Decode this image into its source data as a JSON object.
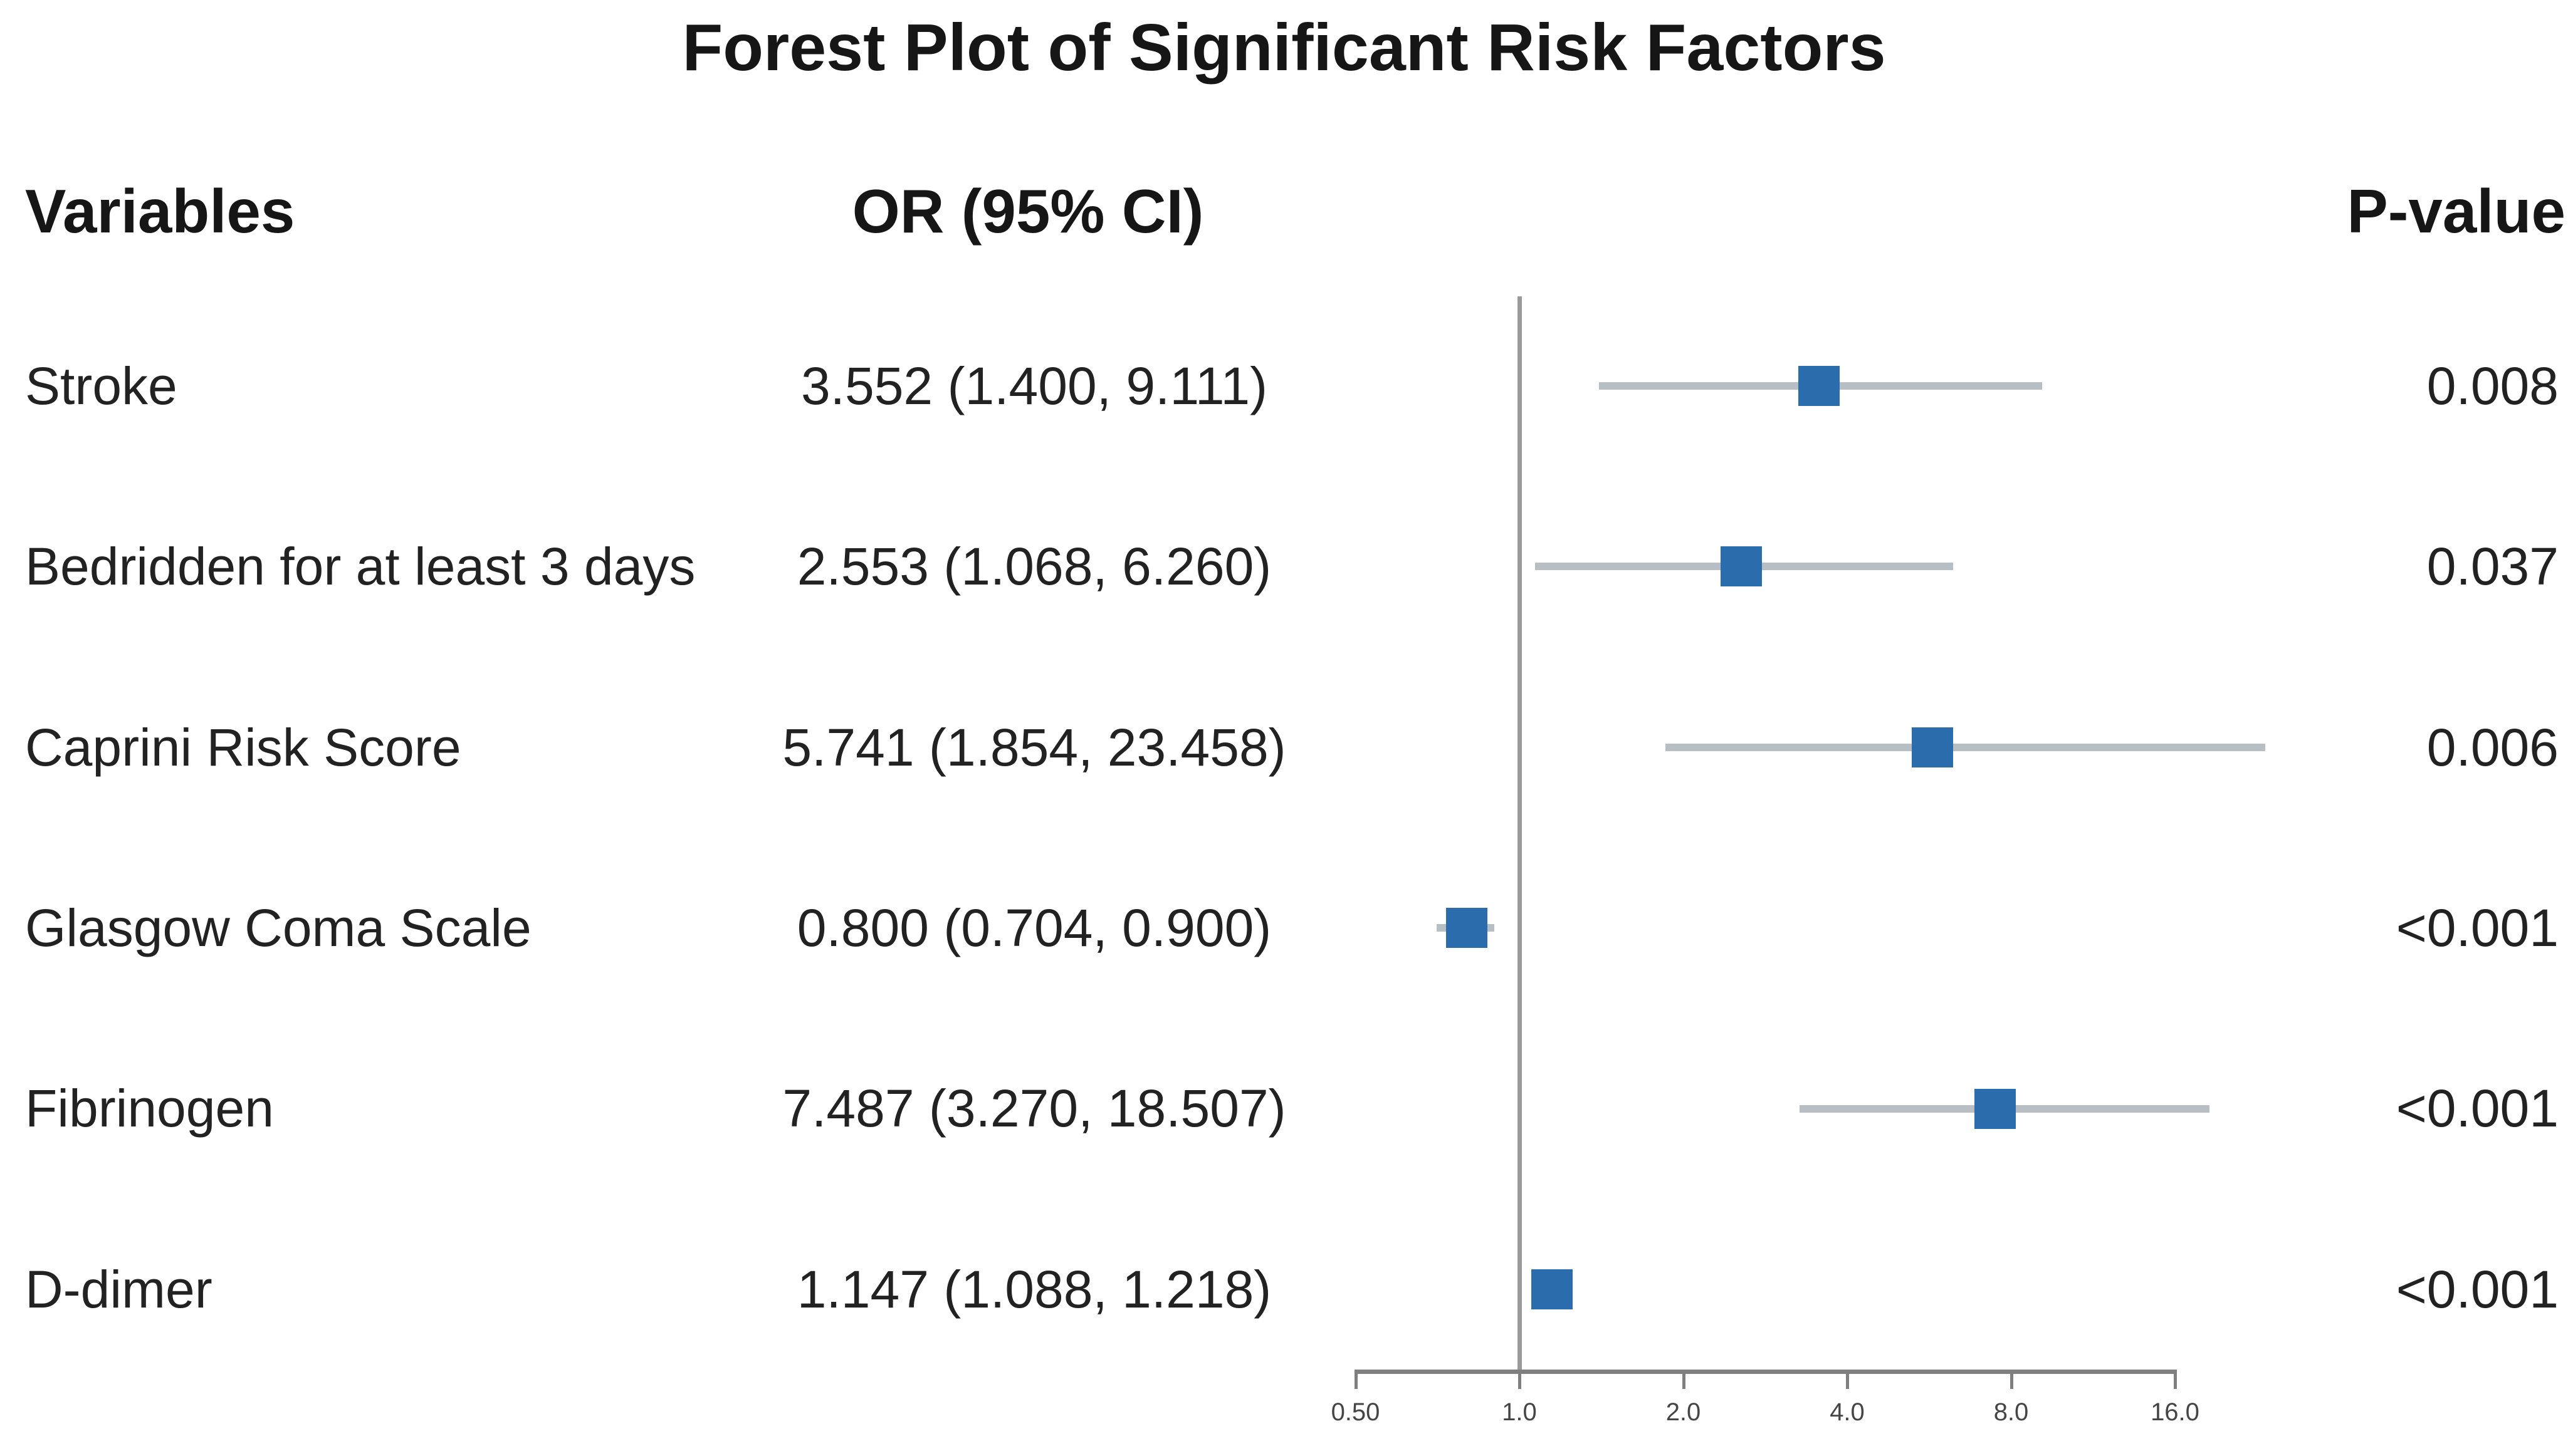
{
  "chart": {
    "title": "Forest Plot of Significant Risk Factors",
    "columns": {
      "variables": "Variables",
      "or_ci": "OR (95% CI)",
      "p_value": "P-value"
    }
  },
  "chart_data": {
    "type": "forest",
    "title": "Forest Plot of Significant Risk Factors",
    "columns": [
      "Variables",
      "OR (95% CI)",
      "P-value"
    ],
    "rows": [
      {
        "variable": "Stroke",
        "or_ci_label": "3.552 (1.400, 9.111)",
        "or": 3.552,
        "ci_low": 1.4,
        "ci_high": 9.111,
        "p_value": "0.008"
      },
      {
        "variable": "Bedridden for at least 3 days",
        "or_ci_label": "2.553 (1.068, 6.260)",
        "or": 2.553,
        "ci_low": 1.068,
        "ci_high": 6.26,
        "p_value": "0.037"
      },
      {
        "variable": "Caprini Risk Score",
        "or_ci_label": "5.741 (1.854, 23.458)",
        "or": 5.741,
        "ci_low": 1.854,
        "ci_high": 23.458,
        "p_value": "0.006"
      },
      {
        "variable": "Glasgow Coma Scale",
        "or_ci_label": "0.800 (0.704, 0.900)",
        "or": 0.8,
        "ci_low": 0.704,
        "ci_high": 0.9,
        "p_value": "<0.001"
      },
      {
        "variable": "Fibrinogen",
        "or_ci_label": "7.487 (3.270, 18.507)",
        "or": 7.487,
        "ci_low": 3.27,
        "ci_high": 18.507,
        "p_value": "<0.001"
      },
      {
        "variable": "D-dimer",
        "or_ci_label": "1.147 (1.088, 1.218)",
        "or": 1.147,
        "ci_low": 1.088,
        "ci_high": 1.218,
        "p_value": "<0.001"
      }
    ],
    "x_axis": {
      "scale": "log2",
      "ticks": [
        0.5,
        1.0,
        2.0,
        4.0,
        8.0,
        16.0
      ],
      "tick_labels": [
        "0.50",
        "1.0",
        "2.0",
        "4.0",
        "8.0",
        "16.0"
      ],
      "reference_line": 1.0
    },
    "legend": null,
    "grid": false,
    "marker_color": "#2b6cad",
    "ci_line_color": "#b7bec4",
    "axis_color": "#7f7f7f",
    "ref_line_color": "#9a9a9a"
  }
}
